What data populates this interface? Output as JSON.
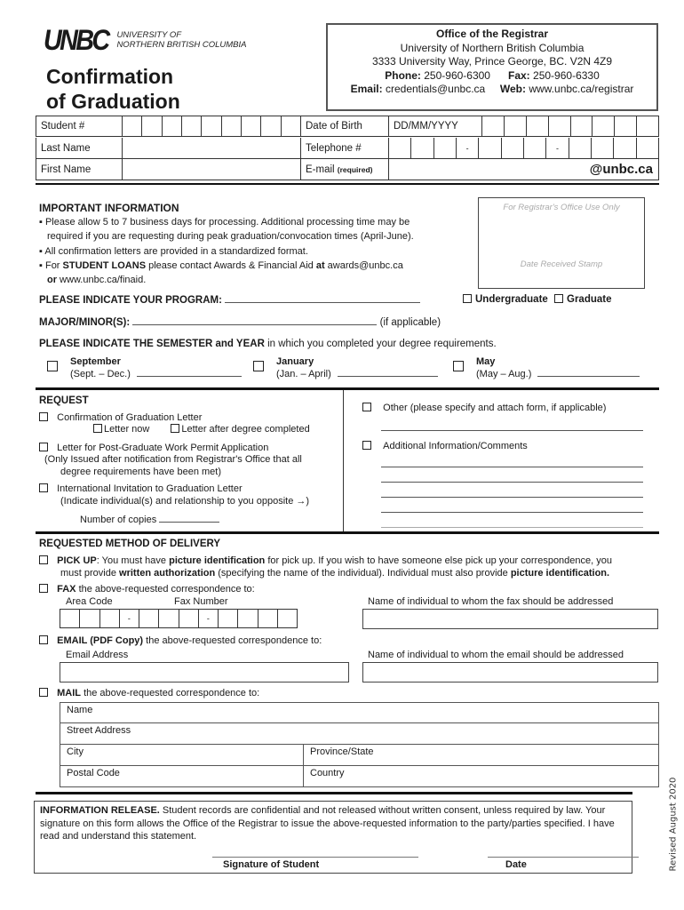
{
  "logo": {
    "wordmark": "UNBC",
    "line1": "UNIVERSITY OF",
    "line2": "NORTHERN BRITISH COLUMBIA"
  },
  "title": {
    "line1": "Confirmation",
    "line2": "of Graduation"
  },
  "office": {
    "name": "Office of the Registrar",
    "university": "University of Northern British Columbia",
    "address": "3333 University Way, Prince George, BC. V2N 4Z9",
    "phone_label": "Phone:",
    "phone": "250-960-6300",
    "fax_label": "Fax:",
    "fax": "250-960-6330",
    "email_label": "Email:",
    "email": "credentials@unbc.ca",
    "web_label": "Web:",
    "web": "www.unbc.ca/registrar"
  },
  "student": {
    "student_no": "Student #",
    "dob": "Date of Birth",
    "dob_format": "DD/MM/YYYY",
    "last_name": "Last Name",
    "telephone": "Telephone #",
    "first_name": "First Name",
    "email": "E-mail",
    "email_req": "(required)",
    "email_domain": "@unbc.ca",
    "dash": "-"
  },
  "info": {
    "heading": "IMPORTANT INFORMATION",
    "b1a": "Please allow 5 to 7 business days for processing. Additional processing time may be",
    "b1b": "required if you are requesting during peak graduation/convocation times (April-June).",
    "b2": "All confirmation letters are provided in a standardized format.",
    "b3_pre": "For ",
    "b3_bold": "STUDENT LOANS",
    "b3_mid": " please contact Awards & Financial Aid ",
    "b3_at": "at",
    "b3_email": " awards@unbc.ca",
    "b3_or": "or",
    "b3_web": " www.unbc.ca/finaid."
  },
  "stamp": {
    "top": "For Registrar's Office Use Only",
    "bottom": "Date Received Stamp"
  },
  "program": {
    "label": "PLEASE INDICATE YOUR PROGRAM:",
    "undergrad": "Undergraduate",
    "grad": "Graduate",
    "major": "MAJOR/MINOR(S):",
    "if_applicable": "(if applicable)"
  },
  "semester": {
    "heading_bold": "PLEASE INDICATE THE SEMESTER and YEAR",
    "heading_rest": " in which you completed your degree requirements.",
    "options": [
      {
        "name": "September",
        "range": "(Sept. – Dec.)"
      },
      {
        "name": "January",
        "range": "(Jan. – April)"
      },
      {
        "name": "May",
        "range": "(May – Aug.)"
      }
    ]
  },
  "request": {
    "heading": "REQUEST",
    "confirmation": "Confirmation of Graduation Letter",
    "letter_now": "Letter now",
    "letter_after": "Letter after degree completed",
    "work_permit": "Letter for Post-Graduate Work Permit Application",
    "work_permit_note1": "(Only Issued after notification from Registrar's Office that all",
    "work_permit_note2": "degree requirements have been met)",
    "international": "International Invitation to Graduation Letter",
    "international_note": "(Indicate individual(s) and relationship to you opposite →)",
    "copies": "Number of copies",
    "other": "Other (please specify and attach form, if applicable)",
    "additional": "Additional Information/Comments"
  },
  "delivery": {
    "heading": "REQUESTED METHOD OF DELIVERY",
    "pickup_b": "PICK UP",
    "pickup_1": ": You must have ",
    "pickup_b2": "picture identification",
    "pickup_2": " for pick up.  If you wish to have someone else pick up your correspondence, you",
    "pickup_3": "must provide ",
    "pickup_b3": "written authorization",
    "pickup_4": " (specifying the name of the individual). Individual must also provide ",
    "pickup_b4": "picture identification.",
    "fax_b": "FAX",
    "fax_rest": " the above-requested correspondence to:",
    "area_code": "Area Code",
    "fax_number": "Fax Number",
    "fax_name": "Name of individual to whom the fax should be addressed",
    "email_b": "EMAIL (PDF Copy)",
    "email_rest": " the above-requested correspondence to:",
    "email_address": "Email Address",
    "email_name": "Name of individual to whom the email should be addressed",
    "mail_b": "MAIL",
    "mail_rest": " the above-requested correspondence to:",
    "mail_fields": {
      "name": "Name",
      "street": "Street Address",
      "city": "City",
      "province": "Province/State",
      "postal": "Postal Code",
      "country": "Country"
    }
  },
  "release": {
    "heading": "INFORMATION RELEASE.",
    "text1": " Student records are confidential and not released without written consent, unless required by law.  Your",
    "text2": "signature on this form allows the Office of the Registrar to issue the above-requested information to the party/parties specified. I have",
    "text3": "read and understand this statement.",
    "signature": "Signature of Student",
    "date": "Date"
  },
  "revised": "Revised August 2020"
}
